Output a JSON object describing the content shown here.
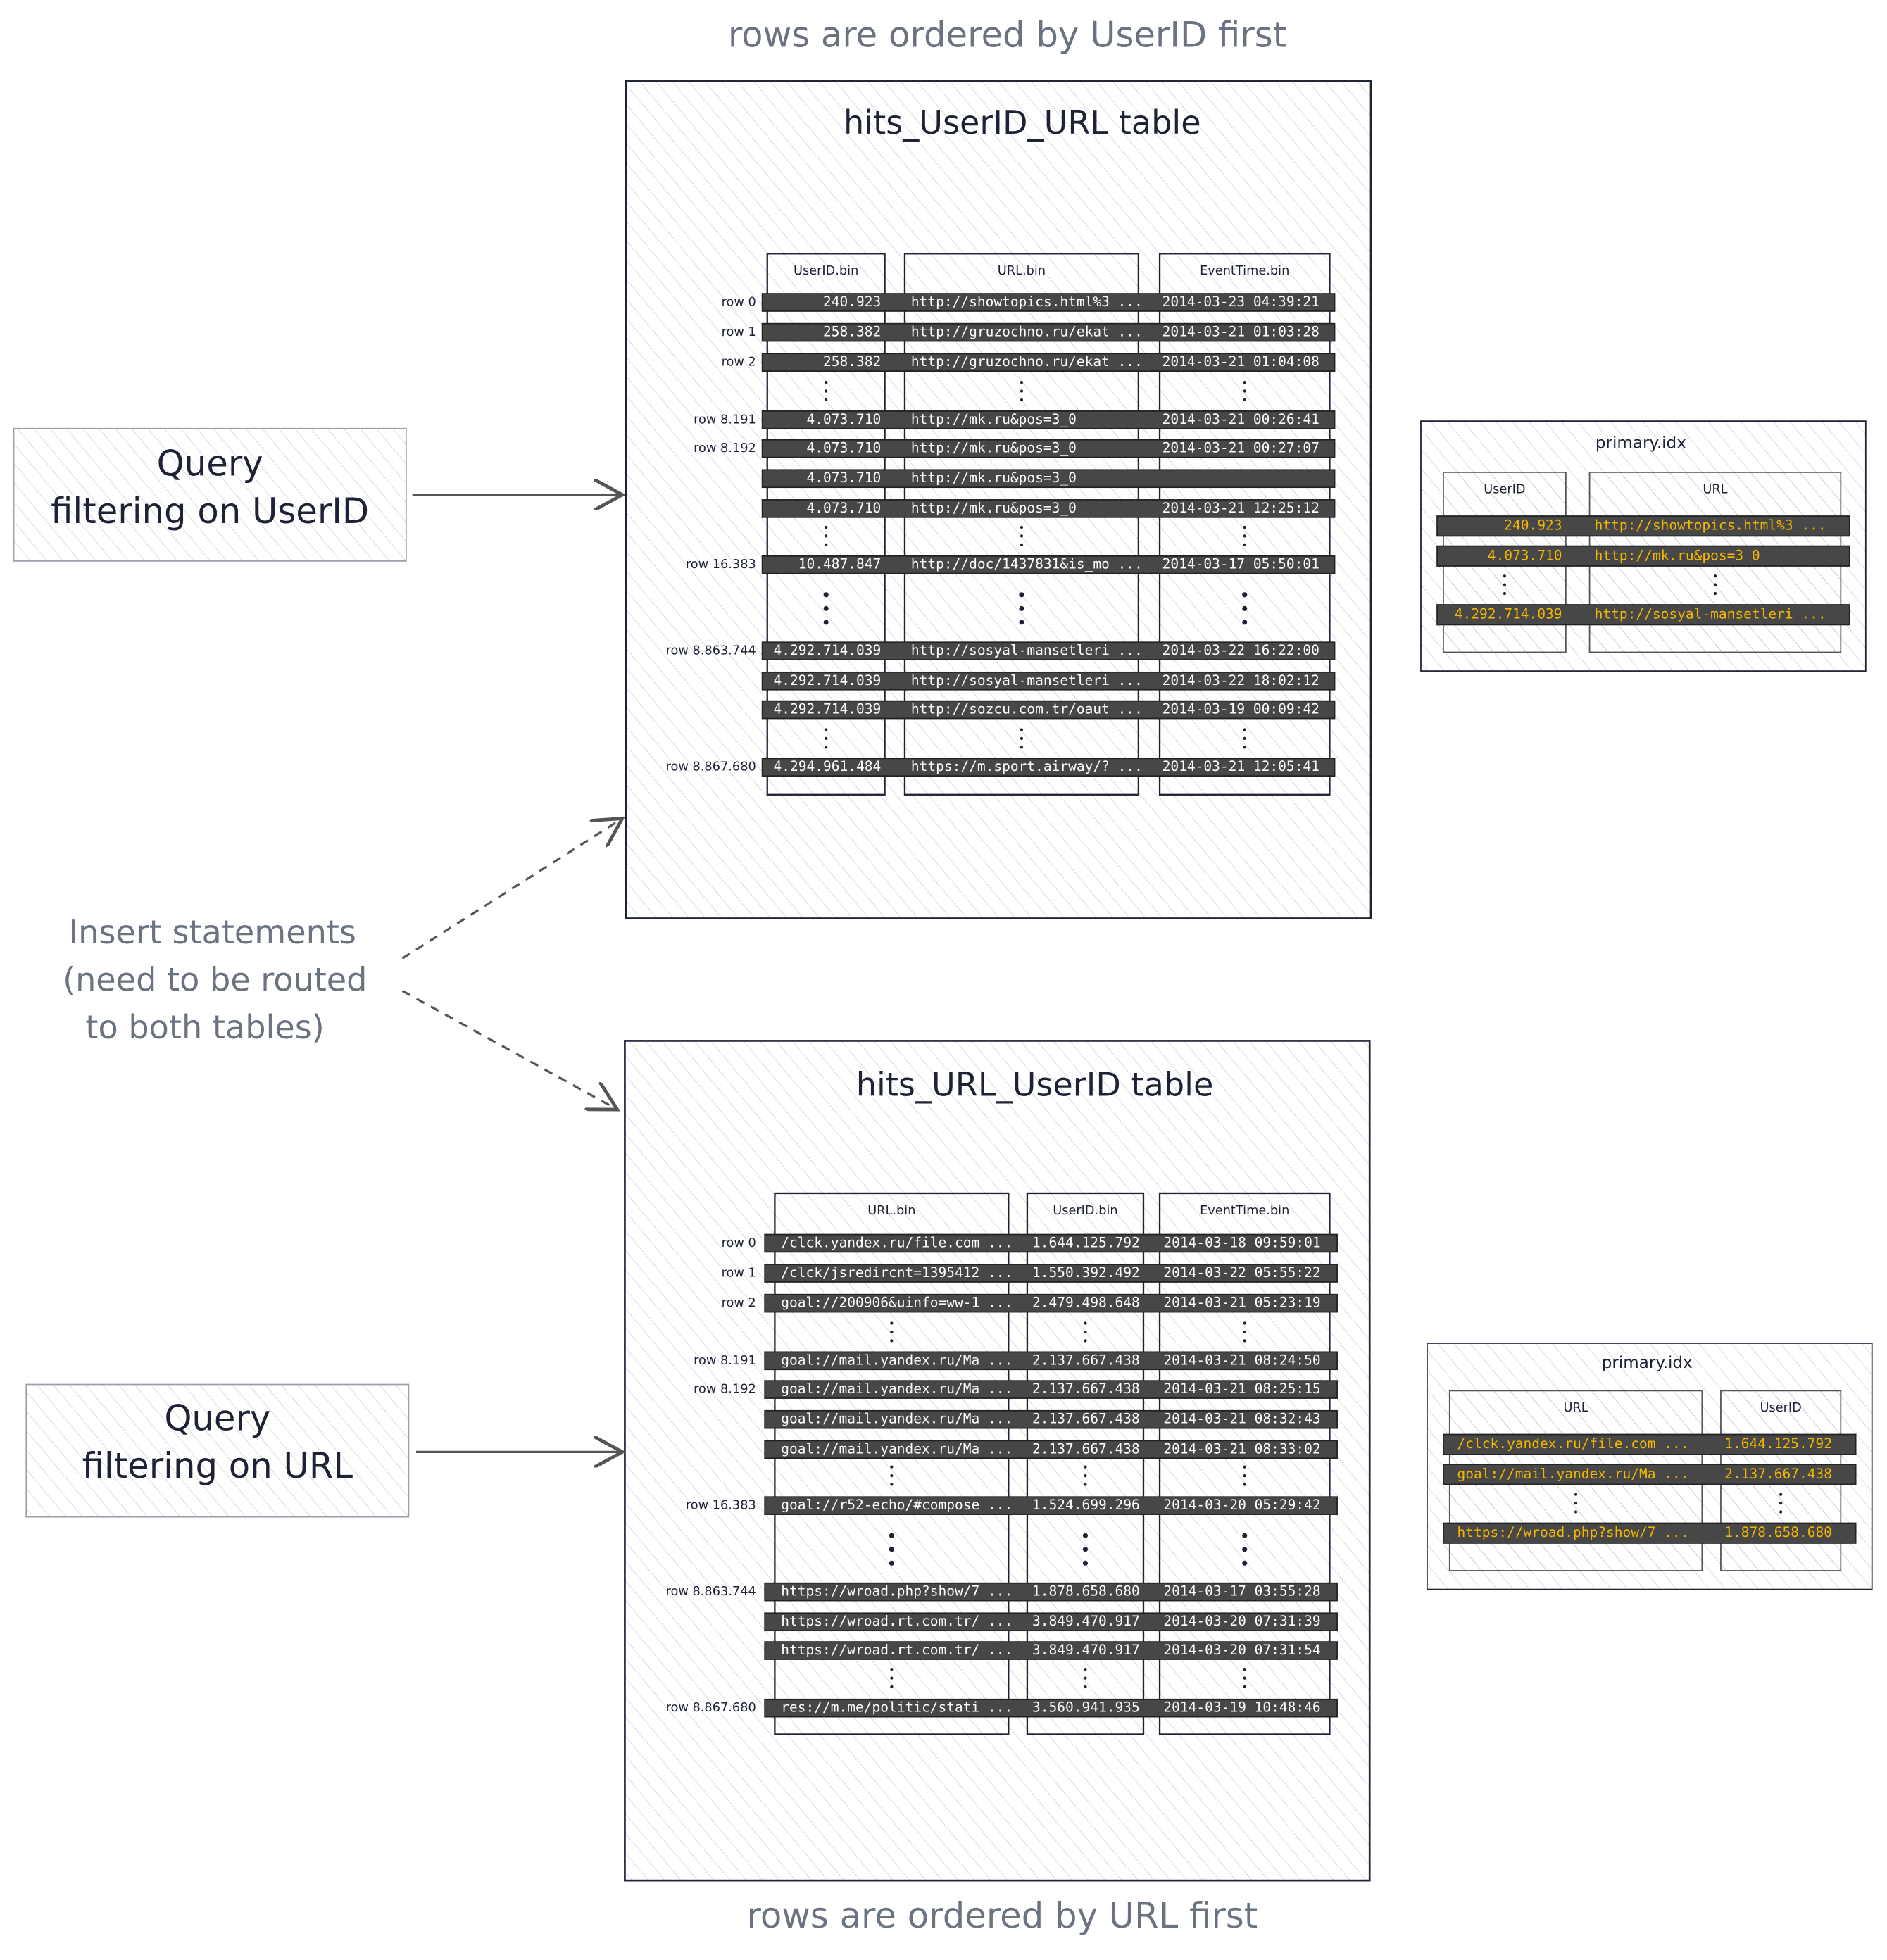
{
  "top_caption": "rows are ordered by UserID first",
  "bottom_caption": "rows are ordered by URL first",
  "queries": [
    {
      "lines": [
        "Query",
        "filtering on UserID"
      ]
    },
    {
      "lines": [
        "Query",
        "filtering on URL"
      ]
    }
  ],
  "insert_note": [
    "Insert statements",
    "(need to be routed",
    "to both tables)"
  ],
  "tables": [
    {
      "title": "hits_UserID_URL table",
      "columns": [
        "UserID.bin",
        "URL.bin",
        "EventTime.bin"
      ],
      "rows": [
        {
          "label": "row 0",
          "cells": [
            "240.923",
            "http://showtopics.html%3 ...",
            "2014-03-23 04:39:21"
          ]
        },
        {
          "label": "row 1",
          "cells": [
            "258.382",
            "http://gruzochno.ru/ekat ...",
            "2014-03-21 01:03:28"
          ]
        },
        {
          "label": "row 2",
          "cells": [
            "258.382",
            "http://gruzochno.ru/ekat ...",
            "2014-03-21 01:04:08"
          ]
        },
        {
          "label": "row 8.191",
          "cells": [
            "4.073.710",
            "http://mk.ru&pos=3_0",
            "2014-03-21 00:26:41"
          ]
        },
        {
          "label": "row 8.192",
          "cells": [
            "4.073.710",
            "http://mk.ru&pos=3_0",
            "2014-03-21 00:27:07"
          ]
        },
        {
          "label": null,
          "cells": [
            "4.073.710",
            "http://mk.ru&pos=3_0",
            null
          ]
        },
        {
          "label": null,
          "cells": [
            "4.073.710",
            "http://mk.ru&pos=3_0",
            "2014-03-21 12:25:12"
          ]
        },
        {
          "label": "row 16.383",
          "cells": [
            "10.487.847",
            "http://doc/1437831&is_mo ...",
            "2014-03-17 05:50:01"
          ]
        },
        {
          "label": "row 8.863.744",
          "cells": [
            "4.292.714.039",
            "http://sosyal-mansetleri ...",
            "2014-03-22 16:22:00"
          ]
        },
        {
          "label": null,
          "cells": [
            "4.292.714.039",
            "http://sosyal-mansetleri ...",
            "2014-03-22 18:02:12"
          ]
        },
        {
          "label": null,
          "cells": [
            "4.292.714.039",
            "http://sozcu.com.tr/oaut ...",
            "2014-03-19 00:09:42"
          ]
        },
        {
          "label": "row 8.867.680",
          "cells": [
            "4.294.961.484",
            "https://m.sport.airway/? ...",
            "2014-03-21 12:05:41"
          ]
        }
      ],
      "index": {
        "title": "primary.idx",
        "columns": [
          "UserID",
          "URL"
        ],
        "rows": [
          [
            "240.923",
            "http://showtopics.html%3 ..."
          ],
          [
            "4.073.710",
            "http://mk.ru&pos=3_0"
          ],
          [
            "4.292.714.039",
            "http://sosyal-mansetleri ..."
          ]
        ]
      }
    },
    {
      "title": "hits_URL_UserID table",
      "columns": [
        "URL.bin",
        "UserID.bin",
        "EventTime.bin"
      ],
      "rows": [
        {
          "label": "row 0",
          "cells": [
            "/clck.yandex.ru/file.com ...",
            "1.644.125.792",
            "2014-03-18 09:59:01"
          ]
        },
        {
          "label": "row 1",
          "cells": [
            "/clck/jsredircnt=1395412 ...",
            "1.550.392.492",
            "2014-03-22 05:55:22"
          ]
        },
        {
          "label": "row 2",
          "cells": [
            "goal://200906&uinfo=ww-1 ...",
            "2.479.498.648",
            "2014-03-21 05:23:19"
          ]
        },
        {
          "label": "row 8.191",
          "cells": [
            "goal://mail.yandex.ru/Ma ...",
            "2.137.667.438",
            "2014-03-21 08:24:50"
          ]
        },
        {
          "label": "row 8.192",
          "cells": [
            "goal://mail.yandex.ru/Ma ...",
            "2.137.667.438",
            "2014-03-21 08:25:15"
          ]
        },
        {
          "label": null,
          "cells": [
            "goal://mail.yandex.ru/Ma ...",
            "2.137.667.438",
            "2014-03-21 08:32:43"
          ]
        },
        {
          "label": null,
          "cells": [
            "goal://mail.yandex.ru/Ma ...",
            "2.137.667.438",
            "2014-03-21 08:33:02"
          ]
        },
        {
          "label": "row 16.383",
          "cells": [
            "goal://r52-echo/#compose ...",
            "1.524.699.296",
            "2014-03-20 05:29:42"
          ]
        },
        {
          "label": "row 8.863.744",
          "cells": [
            "https://wroad.php?show/7 ...",
            "1.878.658.680",
            "2014-03-17 03:55:28"
          ]
        },
        {
          "label": null,
          "cells": [
            "https://wroad.rt.com.tr/ ...",
            "3.849.470.917",
            "2014-03-20 07:31:39"
          ]
        },
        {
          "label": null,
          "cells": [
            "https://wroad.rt.com.tr/ ...",
            "3.849.470.917",
            "2014-03-20 07:31:54"
          ]
        },
        {
          "label": "row 8.867.680",
          "cells": [
            "res://m.me/politic/stati ...",
            "3.560.941.935",
            "2014-03-19 10:48:46"
          ]
        }
      ],
      "index": {
        "title": "primary.idx",
        "columns": [
          "URL",
          "UserID"
        ],
        "rows": [
          [
            "/clck.yandex.ru/file.com ...",
            "1.644.125.792"
          ],
          [
            "goal://mail.yandex.ru/Ma ...",
            "2.137.667.438"
          ],
          [
            "https://wroad.php?show/7 ...",
            "1.878.658.680"
          ]
        ]
      }
    }
  ]
}
